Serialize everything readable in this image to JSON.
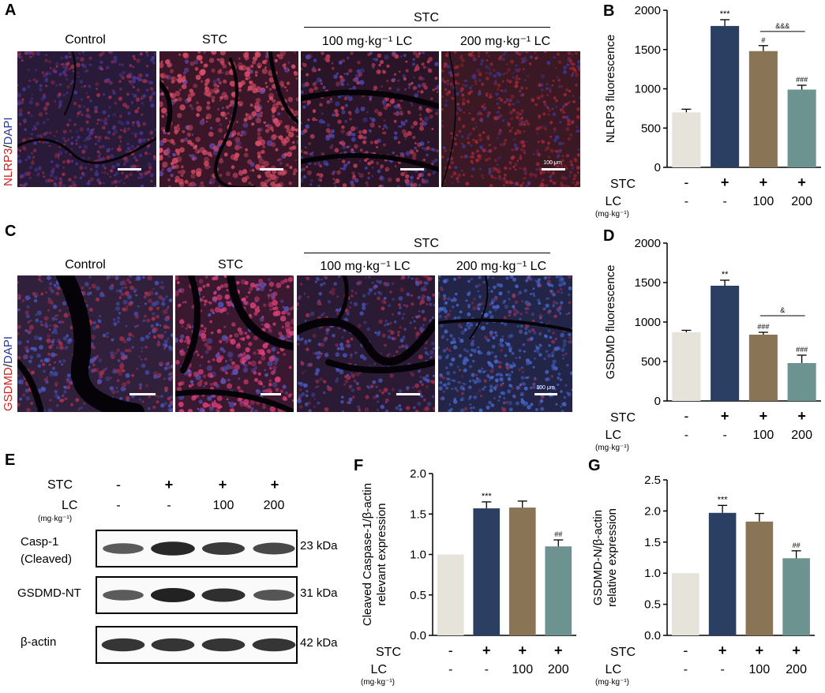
{
  "panels": {
    "A": {
      "letter": "A",
      "group_label": "STC",
      "columns": [
        "Control",
        "STC",
        "100 mg·kg⁻¹ LC",
        "200 mg·kg⁻¹ LC"
      ],
      "stain_red": "NLRP3",
      "stain_sep": "/",
      "stain_blue": "DAPI",
      "scalebar": "100 μm"
    },
    "C": {
      "letter": "C",
      "group_label": "STC",
      "columns": [
        "Control",
        "STC",
        "100 mg·kg⁻¹ LC",
        "200 mg·kg⁻¹ LC"
      ],
      "stain_red": "GSDMD",
      "stain_sep": "/",
      "stain_blue": "DAPI",
      "scalebar": "100 μm"
    },
    "E": {
      "letter": "E",
      "row_stc_label": "STC",
      "row_lc_label": "LC",
      "row_lc_unit": "(mg·kg⁻¹)",
      "stc": [
        "-",
        "+",
        "+",
        "+"
      ],
      "lc": [
        "-",
        "-",
        "100",
        "200"
      ],
      "bands": [
        {
          "name": "Casp-1\n(Cleaved)",
          "kda": "23 kDa",
          "intensity": [
            0.55,
            0.95,
            0.8,
            0.7
          ]
        },
        {
          "name": "GSDMD-NT",
          "kda": "31 kDa",
          "intensity": [
            0.55,
            1.0,
            0.9,
            0.6
          ]
        },
        {
          "name": "β-actin",
          "kda": "42 kDa",
          "intensity": [
            0.85,
            0.85,
            0.85,
            0.85
          ]
        }
      ]
    }
  },
  "condition_rows": {
    "stc_label": "STC",
    "lc_label": "LC",
    "lc_unit": "(mg·kg⁻¹)",
    "stc": [
      "-",
      "+",
      "+",
      "+"
    ],
    "lc": [
      "-",
      "-",
      "100",
      "200"
    ]
  },
  "colors": {
    "control": "#e6e3da",
    "stc": "#2a3f62",
    "lc100": "#8a7456",
    "lc200": "#6d9390",
    "red_stain": "#d42020",
    "blue_stain": "#2a3a9a"
  },
  "chart_data": [
    {
      "id": "B",
      "letter": "B",
      "type": "bar",
      "ylabel": "NLRP3 fluorescence",
      "ylim": [
        0,
        2000
      ],
      "yticks": [
        "0",
        "500",
        "1000",
        "1500",
        "2000"
      ],
      "values": [
        700,
        1800,
        1480,
        990
      ],
      "errors": [
        40,
        80,
        70,
        55
      ],
      "annotations": [
        "",
        "***",
        "#",
        "###"
      ],
      "bracket": {
        "from": 2,
        "to": 3,
        "label": "&&&",
        "y": 1730
      }
    },
    {
      "id": "D",
      "letter": "D",
      "type": "bar",
      "ylabel": "GSDMD fluorescence",
      "ylim": [
        0,
        2000
      ],
      "yticks": [
        "0",
        "500",
        "1000",
        "1500",
        "2000"
      ],
      "values": [
        870,
        1460,
        840,
        480
      ],
      "errors": [
        25,
        70,
        30,
        100
      ],
      "annotations": [
        "",
        "**",
        "###",
        "###"
      ],
      "bracket": {
        "from": 2,
        "to": 3,
        "label": "&",
        "y": 1080
      }
    },
    {
      "id": "F",
      "letter": "F",
      "type": "bar",
      "ylabel": "Cleaved Caspase-1/β-actin\nrelevant expression",
      "ylim": [
        0,
        2.0
      ],
      "yticks": [
        "0.0",
        "0.5",
        "1.0",
        "1.5",
        "2.0"
      ],
      "values": [
        1.0,
        1.57,
        1.58,
        1.1
      ],
      "errors": [
        0,
        0.08,
        0.08,
        0.08
      ],
      "annotations": [
        "",
        "***",
        "",
        "##"
      ],
      "bracket": null
    },
    {
      "id": "G",
      "letter": "G",
      "type": "bar",
      "ylabel": "GSDMD-N/β-actin\nrelative expression",
      "ylim": [
        0,
        2.5
      ],
      "yticks": [
        "0.0",
        "0.5",
        "1.0",
        "1.5",
        "2.0",
        "2.5"
      ],
      "values": [
        1.0,
        1.97,
        1.83,
        1.24
      ],
      "errors": [
        0,
        0.12,
        0.13,
        0.12
      ],
      "annotations": [
        "",
        "***",
        "",
        "##"
      ],
      "bracket": null
    }
  ]
}
